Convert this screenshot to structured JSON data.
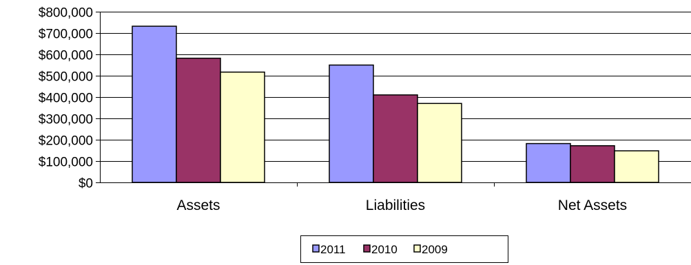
{
  "chart_data": {
    "type": "bar",
    "categories": [
      "Assets",
      "Liabilities",
      "Net Assets"
    ],
    "series": [
      {
        "name": "2011",
        "values": [
          732000,
          550000,
          182000
        ],
        "color": "#9999ff"
      },
      {
        "name": "2010",
        "values": [
          582000,
          410000,
          172000
        ],
        "color": "#993366"
      },
      {
        "name": "2009",
        "values": [
          517000,
          370000,
          148000
        ],
        "color": "#ffffcc"
      }
    ],
    "title": "",
    "xlabel": "",
    "ylabel": "",
    "ylim": [
      0,
      800000
    ],
    "ytick_values": [
      0,
      100000,
      200000,
      300000,
      400000,
      500000,
      600000,
      700000,
      800000
    ],
    "ytick_labels": [
      "$0",
      "$100,000",
      "$200,000",
      "$300,000",
      "$400,000",
      "$500,000",
      "$600,000",
      "$700,000",
      "$800,000"
    ],
    "grid": true,
    "legend_position": "bottom-center"
  }
}
